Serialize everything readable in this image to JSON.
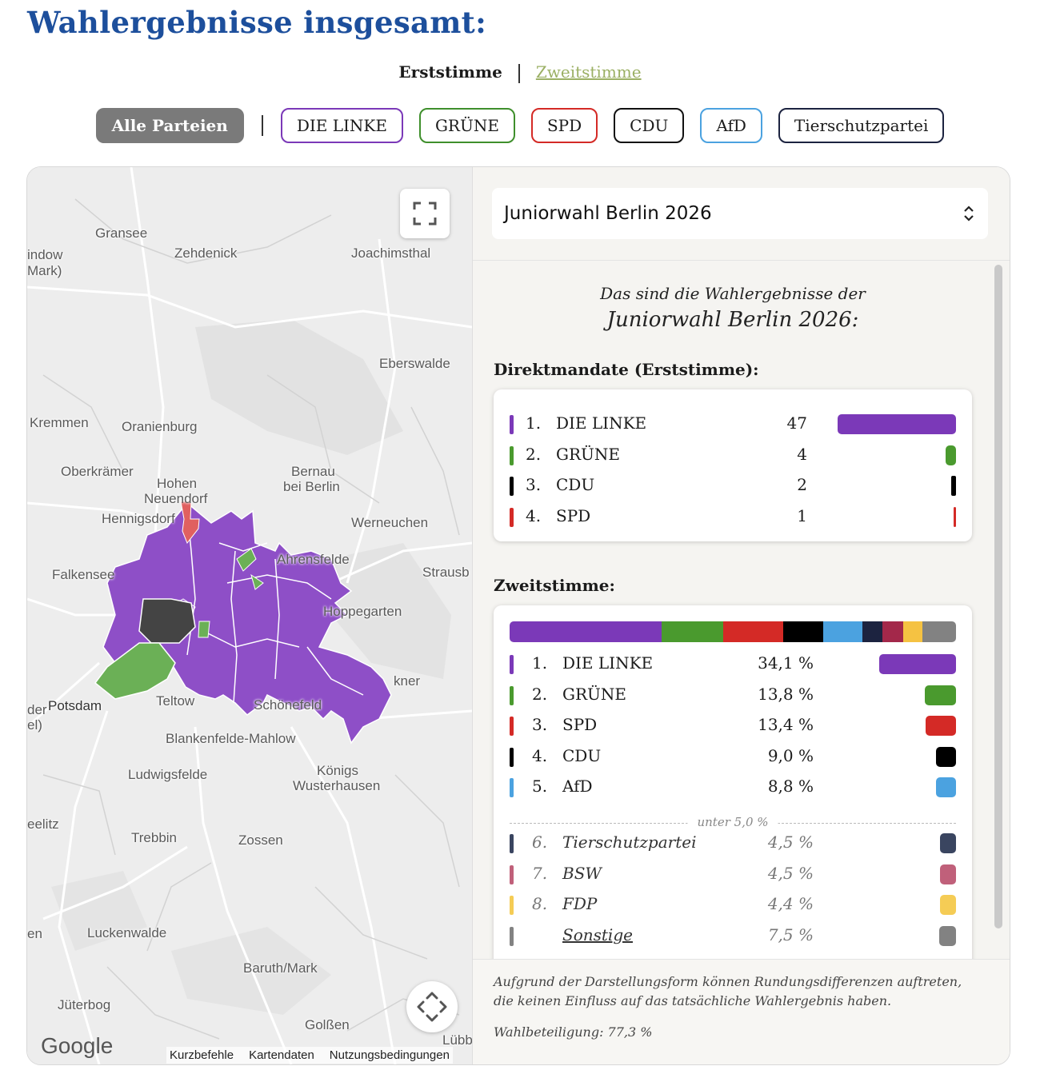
{
  "page": {
    "title": "Wahlergebnisse insgesamt:"
  },
  "vote_switch": {
    "first": "Erststimme",
    "second": "Zweitstimme"
  },
  "filters": {
    "all": "Alle Parteien",
    "parties": [
      {
        "label": "DIE LINKE",
        "color": "#7b39b8"
      },
      {
        "label": "GRÜNE",
        "color": "#3f8f2c"
      },
      {
        "label": "SPD",
        "color": "#d42a26"
      },
      {
        "label": "CDU",
        "color": "#111111"
      },
      {
        "label": "AfD",
        "color": "#4ba2e0"
      },
      {
        "label": "Tierschutzpartei",
        "color": "#1c2340"
      }
    ]
  },
  "map": {
    "places": [
      "Gransee",
      "Zehdenick",
      "Joachimsthal",
      "indow",
      "Mark)",
      "Eberswalde",
      "Kremmen",
      "Oranienburg",
      "Oberkrämer",
      "Bernau",
      "bei Berlin",
      "Hohen",
      "Neuendorf",
      "Hennigsdorf",
      "Werneuchen",
      "Falkensee",
      "Ahrensfelde",
      "Strausb",
      "Hoppegarten",
      "Potsdam",
      "der",
      "el)",
      "Teltow",
      "Schönefeld",
      "kner",
      "Blankenfelde-Mahlow",
      "Ludwigsfelde",
      "Königs",
      "Wusterhausen",
      "eelitz",
      "Trebbin",
      "Zossen",
      "en",
      "Luckenwalde",
      "Baruth/Mark",
      "Jüterbog",
      "Golßen",
      "Lübb"
    ],
    "google": "Google",
    "attribution": [
      "Kurzbefehle",
      "Kartendaten",
      "Nutzungsbedingungen"
    ],
    "fullscreen_icon": "fullscreen-icon",
    "move_icon": "move-arrows-icon"
  },
  "select": {
    "value": "Juniorwahl Berlin 2026"
  },
  "intro": {
    "line1": "Das sind die Wahlergebnisse der",
    "line2": "Juniorwahl Berlin 2026:"
  },
  "direct": {
    "title": "Direktmandate (Erststimme):",
    "rows": [
      {
        "rank": "1.",
        "party": "DIE LINKE",
        "seats": "47",
        "value": 47,
        "color": "#7b39b8"
      },
      {
        "rank": "2.",
        "party": "GRÜNE",
        "seats": "4",
        "value": 4,
        "color": "#4a9a2e"
      },
      {
        "rank": "3.",
        "party": "CDU",
        "seats": "2",
        "value": 2,
        "color": "#000000"
      },
      {
        "rank": "4.",
        "party": "SPD",
        "seats": "1",
        "value": 1,
        "color": "#d42a26"
      }
    ]
  },
  "second": {
    "title": "Zweitstimme:",
    "threshold_label": "unter 5,0 %",
    "rows": [
      {
        "rank": "1.",
        "party": "DIE LINKE",
        "percent": "34,1 %",
        "value": 34.1,
        "color": "#7b39b8",
        "small": false
      },
      {
        "rank": "2.",
        "party": "GRÜNE",
        "percent": "13,8 %",
        "value": 13.8,
        "color": "#4a9a2e",
        "small": false
      },
      {
        "rank": "3.",
        "party": "SPD",
        "percent": "13,4 %",
        "value": 13.4,
        "color": "#d42a26",
        "small": false
      },
      {
        "rank": "4.",
        "party": "CDU",
        "percent": "9,0 %",
        "value": 9.0,
        "color": "#000000",
        "small": false
      },
      {
        "rank": "5.",
        "party": "AfD",
        "percent": "8,8 %",
        "value": 8.8,
        "color": "#4ba2e0",
        "small": false
      },
      {
        "rank": "6.",
        "party": "Tierschutzpartei",
        "percent": "4,5 %",
        "value": 4.5,
        "color": "#3a4560",
        "small": true
      },
      {
        "rank": "7.",
        "party": "BSW",
        "percent": "4,5 %",
        "value": 4.5,
        "color": "#c0607a",
        "small": true
      },
      {
        "rank": "8.",
        "party": "FDP",
        "percent": "4,4 %",
        "value": 4.4,
        "color": "#f5cc55",
        "small": true
      },
      {
        "rank": "",
        "party": "Sonstige",
        "percent": "7,5 %",
        "value": 7.5,
        "color": "#828282",
        "small": true
      }
    ],
    "stack_colors": [
      "#7b39b8",
      "#4a9a2e",
      "#d42a26",
      "#000000",
      "#4ba2e0",
      "#1c2340",
      "#a3284a",
      "#f5c242",
      "#828282"
    ]
  },
  "footer": {
    "note": "Aufgrund der Darstellungsform können Rundungsdifferenzen auftreten, die keinen Einfluss auf das tatsächliche Wahlergebnis haben.",
    "turnout": "Wahlbeteiligung: 77,3 %"
  }
}
